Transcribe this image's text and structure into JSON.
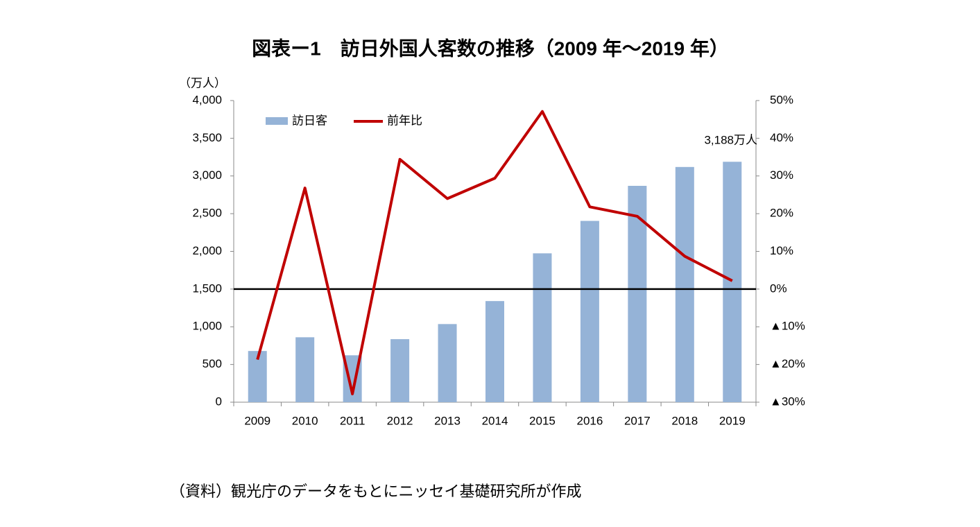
{
  "chart_data": {
    "type": "bar_line",
    "title": "図表ー1　訪日外国人客数の推移（2009 年～2019 年）",
    "y_unit": "（万人）",
    "annotation": "3,188万人",
    "source": "（資料）観光庁のデータをもとにニッセイ基礎研究所が作成",
    "categories": [
      "2009",
      "2010",
      "2011",
      "2012",
      "2013",
      "2014",
      "2015",
      "2016",
      "2017",
      "2018",
      "2019"
    ],
    "series": [
      {
        "name": "訪日客",
        "type": "bar",
        "color": "#95b3d7",
        "values": [
          679,
          861,
          622,
          836,
          1036,
          1341,
          1974,
          2404,
          2869,
          3119,
          3188
        ]
      },
      {
        "name": "前年比",
        "type": "line",
        "axis": "y2",
        "color": "#c00000",
        "values": [
          -18.7,
          26.8,
          -27.8,
          34.4,
          24.0,
          29.4,
          47.1,
          21.8,
          19.3,
          8.7,
          2.2
        ]
      }
    ],
    "ylim": [
      0,
      4000
    ],
    "yticks": [
      0,
      500,
      {
        "value": 1000,
        "label": "1,000"
      },
      {
        "value": 1500,
        "label": "1,500"
      },
      {
        "value": 2000,
        "label": "2,000"
      },
      {
        "value": 2500,
        "label": "2,500"
      },
      {
        "value": 3000,
        "label": "3,000"
      },
      {
        "value": 3500,
        "label": "3,500"
      },
      {
        "value": 4000,
        "label": "4,000"
      }
    ],
    "y2lim": [
      -30,
      50
    ],
    "y2ticks": [
      {
        "value": -30,
        "label": "▲30%"
      },
      {
        "value": -20,
        "label": "▲20%"
      },
      {
        "value": -10,
        "label": "▲10%"
      },
      {
        "value": 0,
        "label": "0%"
      },
      {
        "value": 10,
        "label": "10%"
      },
      {
        "value": 20,
        "label": "20%"
      },
      {
        "value": 30,
        "label": "30%"
      },
      {
        "value": 40,
        "label": "40%"
      },
      {
        "value": 50,
        "label": "50%"
      }
    ],
    "legend": "top-left"
  }
}
